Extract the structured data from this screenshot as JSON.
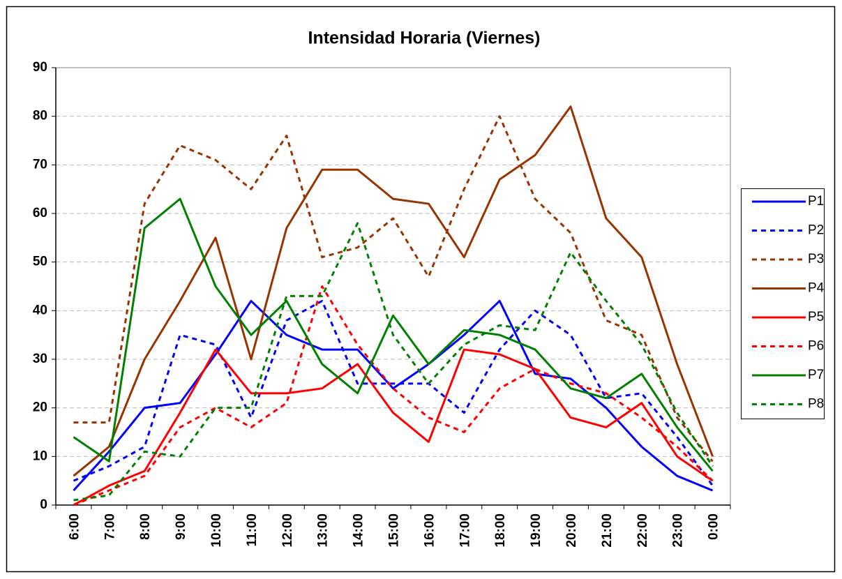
{
  "chart_data": {
    "type": "line",
    "title": "Intensidad Horaria (Viernes)",
    "categories": [
      "6:00",
      "7:00",
      "8:00",
      "9:00",
      "10:00",
      "11:00",
      "12:00",
      "13:00",
      "14:00",
      "15:00",
      "16:00",
      "17:00",
      "18:00",
      "19:00",
      "20:00",
      "21:00",
      "22:00",
      "23:00",
      "0:00"
    ],
    "ylim": [
      0,
      90
    ],
    "yticks": [
      0,
      10,
      20,
      30,
      40,
      50,
      60,
      70,
      80,
      90
    ],
    "grid": true,
    "legend": "right",
    "series": [
      {
        "name": "P1",
        "color": "#0000ff",
        "style": "solid",
        "values": [
          3,
          11,
          20,
          21,
          31,
          42,
          35,
          32,
          32,
          24,
          29,
          35,
          42,
          27,
          26,
          20,
          12,
          6,
          3
        ]
      },
      {
        "name": "P2",
        "color": "#0000ff",
        "style": "dashed",
        "values": [
          5,
          8,
          12,
          35,
          33,
          18,
          38,
          42,
          25,
          25,
          25,
          19,
          32,
          40,
          35,
          22,
          23,
          14,
          4
        ]
      },
      {
        "name": "P3",
        "color": "#993300",
        "style": "dashed",
        "values": [
          17,
          17,
          62,
          74,
          71,
          65,
          76,
          51,
          53,
          59,
          47,
          65,
          80,
          63,
          56,
          38,
          35,
          18,
          9
        ]
      },
      {
        "name": "P4",
        "color": "#993300",
        "style": "solid",
        "values": [
          6,
          12,
          30,
          42,
          55,
          30,
          57,
          69,
          69,
          63,
          62,
          51,
          67,
          72,
          82,
          59,
          51,
          29,
          10
        ]
      },
      {
        "name": "P5",
        "color": "#ff0000",
        "style": "solid",
        "values": [
          0,
          4,
          7,
          19,
          32,
          23,
          23,
          24,
          29,
          19,
          13,
          32,
          31,
          28,
          18,
          16,
          21,
          10,
          5
        ]
      },
      {
        "name": "P6",
        "color": "#ff0000",
        "style": "dashed",
        "values": [
          0,
          3,
          6,
          16,
          20,
          16,
          21,
          45,
          33,
          24,
          18,
          15,
          24,
          28,
          25,
          23,
          18,
          12,
          5
        ]
      },
      {
        "name": "P7",
        "color": "#008000",
        "style": "solid",
        "values": [
          14,
          9,
          57,
          63,
          45,
          35,
          42,
          29,
          23,
          39,
          29,
          36,
          35,
          32,
          24,
          22,
          27,
          16,
          7
        ]
      },
      {
        "name": "P8",
        "color": "#008000",
        "style": "dashed",
        "values": [
          1,
          2,
          11,
          10,
          20,
          20,
          43,
          43,
          58,
          35,
          25,
          33,
          37,
          36,
          52,
          42,
          33,
          19,
          8
        ]
      }
    ]
  }
}
